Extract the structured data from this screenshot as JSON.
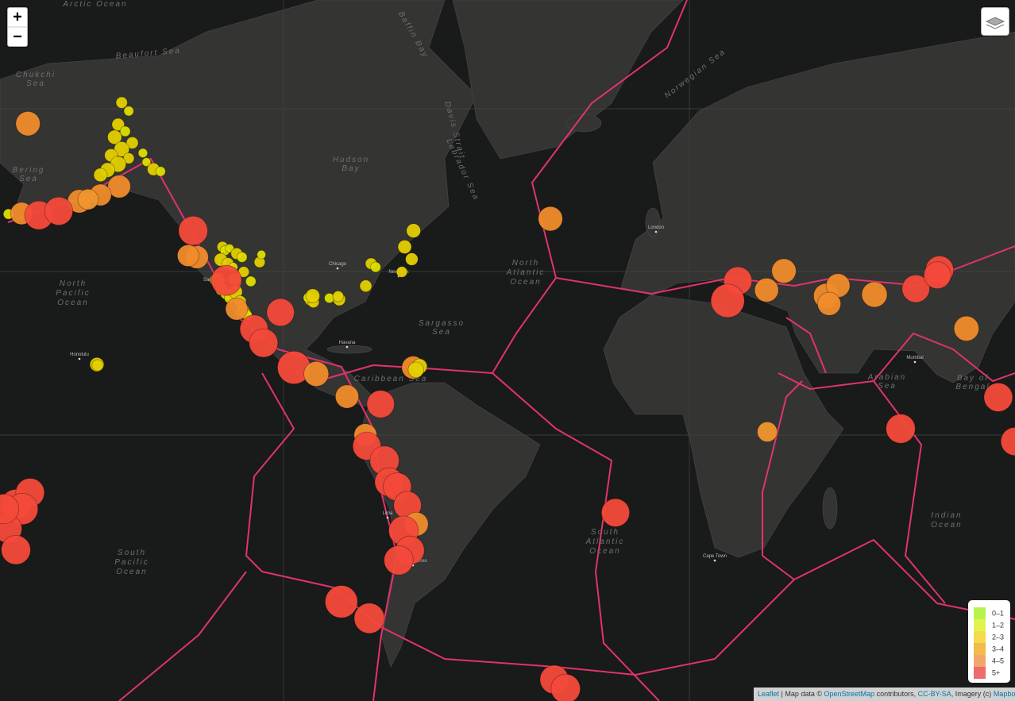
{
  "zoom": {
    "in": "+",
    "out": "−"
  },
  "legend": [
    {
      "label": "0–1",
      "color": "#b7f34d"
    },
    {
      "label": "1–2",
      "color": "#e1f34d"
    },
    {
      "label": "2–3",
      "color": "#f3db4d"
    },
    {
      "label": "3–4",
      "color": "#f3ba4d"
    },
    {
      "label": "4–5",
      "color": "#f0a76b"
    },
    {
      "label": "5+",
      "color": "#f06b6b"
    }
  ],
  "marker_colors": [
    "#b7f34d",
    "#dede00",
    "#e4d000",
    "#f0962e",
    "#f08c2c",
    "#f44a3a"
  ],
  "attribution": {
    "leaflet": "Leaflet",
    "t1": " | Map data © ",
    "osm": "OpenStreetMap",
    "t2": " contributors, ",
    "cc": "CC-BY-SA",
    "t3": ", Imagery (c) ",
    "mapbox": "Mapbox"
  },
  "labels": {
    "north_pacific": [
      "North",
      "Pacific",
      "Ocean"
    ],
    "south_pacific": [
      "South",
      "Pacific",
      "Ocean"
    ],
    "north_atlantic": [
      "North",
      "Atlantic",
      "Ocean"
    ],
    "south_atlantic": [
      "South",
      "Atlantic",
      "Ocean"
    ],
    "indian": [
      "Indian",
      "Ocean"
    ],
    "arabian": [
      "Arabian",
      "Sea"
    ],
    "bengal": [
      "Bay of",
      "Bengal"
    ],
    "caribbean": "Caribbean Sea",
    "sargasso": [
      "Sargasso",
      "Sea"
    ],
    "hudson": [
      "Hudson",
      "Bay"
    ],
    "beaufort": "Beaufort Sea",
    "bering": [
      "Bering",
      "Sea"
    ],
    "chukchi": [
      "Chukchi",
      "Sea"
    ],
    "norwegian": "Norwegian Sea",
    "baffin": "Baffin Bay",
    "labrador": "Labrador Sea",
    "davis": "Davis Strait",
    "arctic": "Arctic Ocean"
  },
  "cities": [
    "San Francisco",
    "Chicago",
    "New York",
    "Havana",
    "Lima",
    "Buenos Aires",
    "London",
    "Mumbai",
    "Cape Town",
    "Honolulu"
  ],
  "quakes": [
    [
      -151,
      68.4,
      2.1
    ],
    [
      -149,
      67.5,
      1.8
    ],
    [
      -152,
      66,
      2.3
    ],
    [
      -150,
      65.2,
      1.9
    ],
    [
      -153,
      64.5,
      2.6
    ],
    [
      -148,
      63.8,
      2.2
    ],
    [
      -151,
      63,
      2.8
    ],
    [
      -154,
      62.2,
      2.4
    ],
    [
      -149,
      61.8,
      2.0
    ],
    [
      -152,
      61,
      2.9
    ],
    [
      -155,
      60.2,
      2.7
    ],
    [
      -157,
      59.5,
      2.5
    ],
    [
      -145,
      62.5,
      1.7
    ],
    [
      -144,
      61.3,
      1.6
    ],
    [
      -142,
      60.3,
      2.3
    ],
    [
      -140,
      60,
      1.8
    ],
    [
      -183,
      53.4,
      1.9
    ],
    [
      -122.5,
      47.5,
      2.0
    ],
    [
      -121.8,
      46.8,
      1.8
    ],
    [
      -120.5,
      47.2,
      1.6
    ],
    [
      -118.5,
      46.2,
      2.1
    ],
    [
      -117,
      45.5,
      1.9
    ],
    [
      -123,
      45,
      2.4
    ],
    [
      -121,
      44.2,
      2.2
    ],
    [
      -119.5,
      43.5,
      1.7
    ],
    [
      -116.5,
      42.5,
      2.0
    ],
    [
      -124,
      40.8,
      2.6
    ],
    [
      -122.8,
      38.8,
      2.3
    ],
    [
      -121.5,
      37.8,
      2.1
    ],
    [
      -120.5,
      36.8,
      1.9
    ],
    [
      -118.8,
      38.2,
      2.5
    ],
    [
      -117.5,
      36,
      2.2
    ],
    [
      -116.8,
      34,
      2.4
    ],
    [
      -116,
      33.2,
      2.1
    ],
    [
      -115.5,
      32.8,
      1.8
    ],
    [
      -112,
      44.5,
      2.0
    ],
    [
      -111.5,
      46,
      1.6
    ],
    [
      -114.5,
      40.5,
      1.9
    ],
    [
      -119,
      41,
      2.3
    ],
    [
      -97.5,
      36.5,
      2.4
    ],
    [
      -96.8,
      35.9,
      2.1
    ],
    [
      -98.2,
      36.9,
      1.9
    ],
    [
      -97,
      37.3,
      2.6
    ],
    [
      -92.3,
      36.8,
      1.8
    ],
    [
      -89.5,
      36.5,
      2.3
    ],
    [
      -89.8,
      37.2,
      2.0
    ],
    [
      -82,
      39.5,
      2.2
    ],
    [
      -80.5,
      44.2,
      2.1
    ],
    [
      -79.2,
      43.5,
      1.9
    ],
    [
      -71,
      47.5,
      2.5
    ],
    [
      -69,
      45.1,
      2.3
    ],
    [
      -68.5,
      50.5,
      2.6
    ],
    [
      -71.8,
      42.5,
      2.0
    ],
    [
      -158,
      20.4,
      2.6
    ],
    [
      -157.8,
      20.2,
      2.1
    ],
    [
      -151.7,
      57.8,
      4.2
    ],
    [
      -163,
      55.5,
      4.3
    ],
    [
      -179.3,
      53.5,
      4.1
    ],
    [
      -157,
      56.5,
      4.0
    ],
    [
      -160.5,
      55.8,
      3.8
    ],
    [
      -177.5,
      66.1,
      4.5
    ],
    [
      -129.7,
      45.5,
      4.2
    ],
    [
      -132.2,
      45.8,
      4.0
    ],
    [
      -118.5,
      34.3,
      4.1
    ],
    [
      -130.8,
      50.5,
      5.4
    ],
    [
      -121.4,
      40.7,
      5.6
    ],
    [
      -174.4,
      53.2,
      5.3
    ],
    [
      -168.8,
      53.9,
      5.2
    ],
    [
      -106.1,
      33.5,
      5.1
    ],
    [
      -113.6,
      29.5,
      5.2
    ],
    [
      -110.9,
      26.0,
      5.3
    ],
    [
      -102.3,
      19.6,
      6.1
    ],
    [
      -96.0,
      17.9,
      4.6
    ],
    [
      -87.3,
      11.7,
      4.3
    ],
    [
      -77.8,
      9.6,
      5.1
    ],
    [
      -82.1,
      0.9,
      4.2
    ],
    [
      -81.7,
      -2.2,
      5.2
    ],
    [
      -76.7,
      -6.3,
      5.4
    ],
    [
      -75.4,
      -12.3,
      5.3
    ],
    [
      -73.1,
      -13.6,
      5.2
    ],
    [
      -70.2,
      -18.6,
      5.1
    ],
    [
      -67.7,
      -23.6,
      4.4
    ],
    [
      -71.3,
      -25.3,
      5.5
    ],
    [
      -69.5,
      -30.2,
      5.3
    ],
    [
      -72.7,
      -32.6,
      5.4
    ],
    [
      -88.9,
      -41.9,
      6.0
    ],
    [
      -81.0,
      -45.3,
      5.6
    ],
    [
      -28.7,
      -56.2,
      5.3
    ],
    [
      -25.5,
      -57.6,
      5.4
    ],
    [
      -11.4,
      -20.6,
      5.2
    ],
    [
      -29.8,
      52.6,
      4.5
    ],
    [
      -68.6,
      19.6,
      4.2
    ],
    [
      -66.8,
      19.9,
      2.8
    ],
    [
      -67.8,
      19.0,
      2.9
    ],
    [
      23.2,
      40.6,
      5.2
    ],
    [
      20.3,
      36.2,
      6.2
    ],
    [
      31.3,
      38.6,
      4.4
    ],
    [
      36.2,
      42.7,
      4.5
    ],
    [
      48.1,
      37.3,
      4.6
    ],
    [
      51.5,
      39.6,
      4.4
    ],
    [
      49.0,
      35.5,
      4.3
    ],
    [
      61.8,
      37.6,
      4.7
    ],
    [
      73.5,
      38.9,
      5.1
    ],
    [
      80.2,
      42.9,
      5.2
    ],
    [
      79.6,
      41.8,
      5.0
    ],
    [
      87.8,
      29.6,
      4.6
    ],
    [
      69.2,
      2.7,
      5.4
    ],
    [
      96.8,
      11.5,
      5.3
    ],
    [
      101.5,
      -0.9,
      5.2
    ],
    [
      31.5,
      1.8,
      3.7
    ],
    [
      -180.9,
      -18.4,
      5.6
    ],
    [
      -176.9,
      -15.2,
      5.3
    ],
    [
      -179.1,
      -19.6,
      5.8
    ],
    [
      -183.2,
      -24.8,
      5.2
    ],
    [
      -180.9,
      -30.1,
      5.4
    ],
    [
      -184.3,
      -19.6,
      5.5
    ]
  ]
}
